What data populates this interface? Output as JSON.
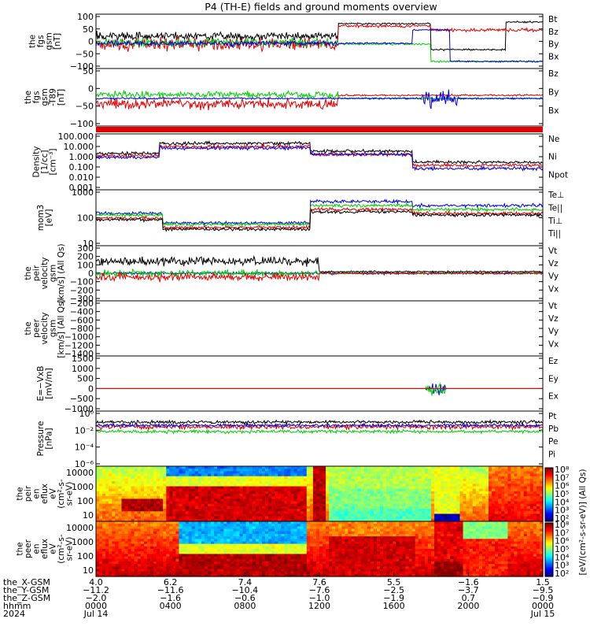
{
  "title": "P4 (TH-E) fields and ground moments overview",
  "colors": {
    "black": "#000000",
    "red": "#e00000",
    "green": "#00d000",
    "blue": "#0000e0"
  },
  "chart_data": [
    {
      "type": "line",
      "name": "fgs_gsm",
      "ylabel": [
        "the",
        "fgs",
        "gsm",
        "[nT]"
      ],
      "ylim": [
        -100,
        100
      ],
      "yticks": [
        "100",
        "50",
        "0",
        "−50",
        "−100"
      ],
      "legend": [
        {
          "label": "Bt",
          "color": "black"
        },
        {
          "label": "Bz",
          "color": "red"
        },
        {
          "label": "By",
          "color": "green"
        },
        {
          "label": "Bx",
          "color": "blue"
        }
      ]
    },
    {
      "type": "line",
      "name": "fgs_gsm_zoom",
      "ylabel": [
        "the",
        "fgs",
        "gsm",
        "-T89",
        "[nT]"
      ],
      "ylim": [
        -130,
        50
      ],
      "yticks": [
        "50",
        "0",
        "−50",
        "−100"
      ],
      "legend": [
        {
          "label": "Bz",
          "color": "red"
        },
        {
          "label": "By",
          "color": "green"
        },
        {
          "label": "Bx",
          "color": "blue"
        }
      ]
    },
    {
      "type": "line",
      "name": "density",
      "ylabel": [
        "Density",
        "[1/cc]",
        "[cm⁻³]"
      ],
      "scale": "log",
      "yticks": [
        "100.000",
        "10.000",
        "1.000",
        "0.100",
        "0.010",
        "0.001"
      ],
      "legend": [
        {
          "label": "Ne",
          "color": "red"
        },
        {
          "label": "Ni",
          "color": "black"
        },
        {
          "label": "Npot",
          "color": "blue"
        }
      ]
    },
    {
      "type": "line",
      "name": "temperature",
      "ylabel": [
        "mom3",
        "[eV]"
      ],
      "scale": "log",
      "yticks": [
        "1000",
        "100",
        "10"
      ],
      "legend": [
        {
          "label": "Te⊥",
          "color": "red"
        },
        {
          "label": "Te||",
          "color": "black"
        },
        {
          "label": "Ti⊥",
          "color": "blue"
        },
        {
          "label": "Ti||",
          "color": "green"
        }
      ]
    },
    {
      "type": "line",
      "name": "peir_velocity",
      "ylabel": [
        "the",
        "peir",
        "velocity",
        "gsm",
        "[km/s] (All Qs)"
      ],
      "ylim": [
        -300,
        300
      ],
      "yticks": [
        "300",
        "200",
        "100",
        "0",
        "−100",
        "−200",
        "−300"
      ],
      "legend": [
        {
          "label": "Vt",
          "color": "black"
        },
        {
          "label": "Vz",
          "color": "red"
        },
        {
          "label": "Vy",
          "color": "green"
        },
        {
          "label": "Vx",
          "color": "blue"
        }
      ]
    },
    {
      "type": "line",
      "name": "peer_velocity",
      "ylabel": [
        "the",
        "peer",
        "velocity",
        "gsm",
        "[km/s] (All Qs)"
      ],
      "ylim": [
        -1400,
        -200
      ],
      "yticks": [
        "−200",
        "−400",
        "−600",
        "−800",
        "−1000",
        "−1200",
        "−1400"
      ],
      "legend": [
        {
          "label": "Vt",
          "color": "black"
        },
        {
          "label": "Vz",
          "color": "red"
        },
        {
          "label": "Vy",
          "color": "green"
        },
        {
          "label": "Vx",
          "color": "blue"
        }
      ]
    },
    {
      "type": "line",
      "name": "efield",
      "ylabel": [
        "E=−VxB",
        "[mV/m]"
      ],
      "ylim": [
        -1000,
        1500
      ],
      "yticks": [
        "1500",
        "1000",
        "500",
        "0",
        "−500",
        "−1000"
      ],
      "legend": [
        {
          "label": "Ez",
          "color": "red"
        },
        {
          "label": "Ey",
          "color": "green"
        },
        {
          "label": "Ex",
          "color": "blue"
        }
      ]
    },
    {
      "type": "line",
      "name": "pressure",
      "ylabel": [
        "Pressure",
        "[nPa]"
      ],
      "scale": "log",
      "yticks": [
        "10⁰",
        "10⁻²",
        "10⁻⁴",
        "10⁻⁶"
      ],
      "legend": [
        {
          "label": "Pt",
          "color": "black"
        },
        {
          "label": "Pb",
          "color": "red"
        },
        {
          "label": "Pe",
          "color": "green"
        },
        {
          "label": "Pi",
          "color": "blue"
        }
      ]
    },
    {
      "type": "heatmap",
      "name": "peir_spectrogram",
      "ylabel": [
        "the",
        "peir",
        "en",
        "eflux",
        "eV",
        "(cm²-s-",
        "sr-eV)"
      ],
      "scale": "log",
      "yticks": [
        "10000",
        "1000",
        "100",
        "10"
      ]
    },
    {
      "type": "heatmap",
      "name": "peer_spectrogram",
      "ylabel": [
        "the",
        "peer",
        "en",
        "eflux",
        "eV",
        "(cm²-s-",
        "sr-eV)"
      ],
      "scale": "log",
      "yticks": [
        "10000",
        "1000",
        "100",
        "10"
      ]
    }
  ],
  "colorbar": {
    "label": "[eV/(cm²-s-sr-eV)] (All Qs)",
    "ticks_top": [
      "10⁸",
      "10⁷",
      "10⁶",
      "10⁵",
      "10⁴",
      "10³",
      "10²"
    ],
    "ticks_bottom": [
      "10⁸",
      "10⁷",
      "10⁶",
      "10⁵",
      "10⁴",
      "10³",
      "10²"
    ]
  },
  "x_axis": {
    "row_labels": [
      "the_X-GSM",
      "the_Y-GSM",
      "the_Z-GSM",
      "hhmm",
      "2024"
    ],
    "columns": [
      [
        "4.0",
        "−11.2",
        "−2.0",
        "0000",
        "Jul 14"
      ],
      [
        "6.2",
        "−11.6",
        "−1.6",
        "0400",
        ""
      ],
      [
        "7.4",
        "−10.4",
        "−0.6",
        "0800",
        ""
      ],
      [
        "7.6",
        "−7.6",
        "−1.0",
        "1200",
        ""
      ],
      [
        "5.5",
        "−2.5",
        "−1.9",
        "1600",
        ""
      ],
      [
        "−1.6",
        "−3.7",
        "0.7",
        "2000",
        ""
      ],
      [
        "1.5",
        "−9.5",
        "−0.9",
        "0000",
        "Jul 15"
      ]
    ]
  }
}
